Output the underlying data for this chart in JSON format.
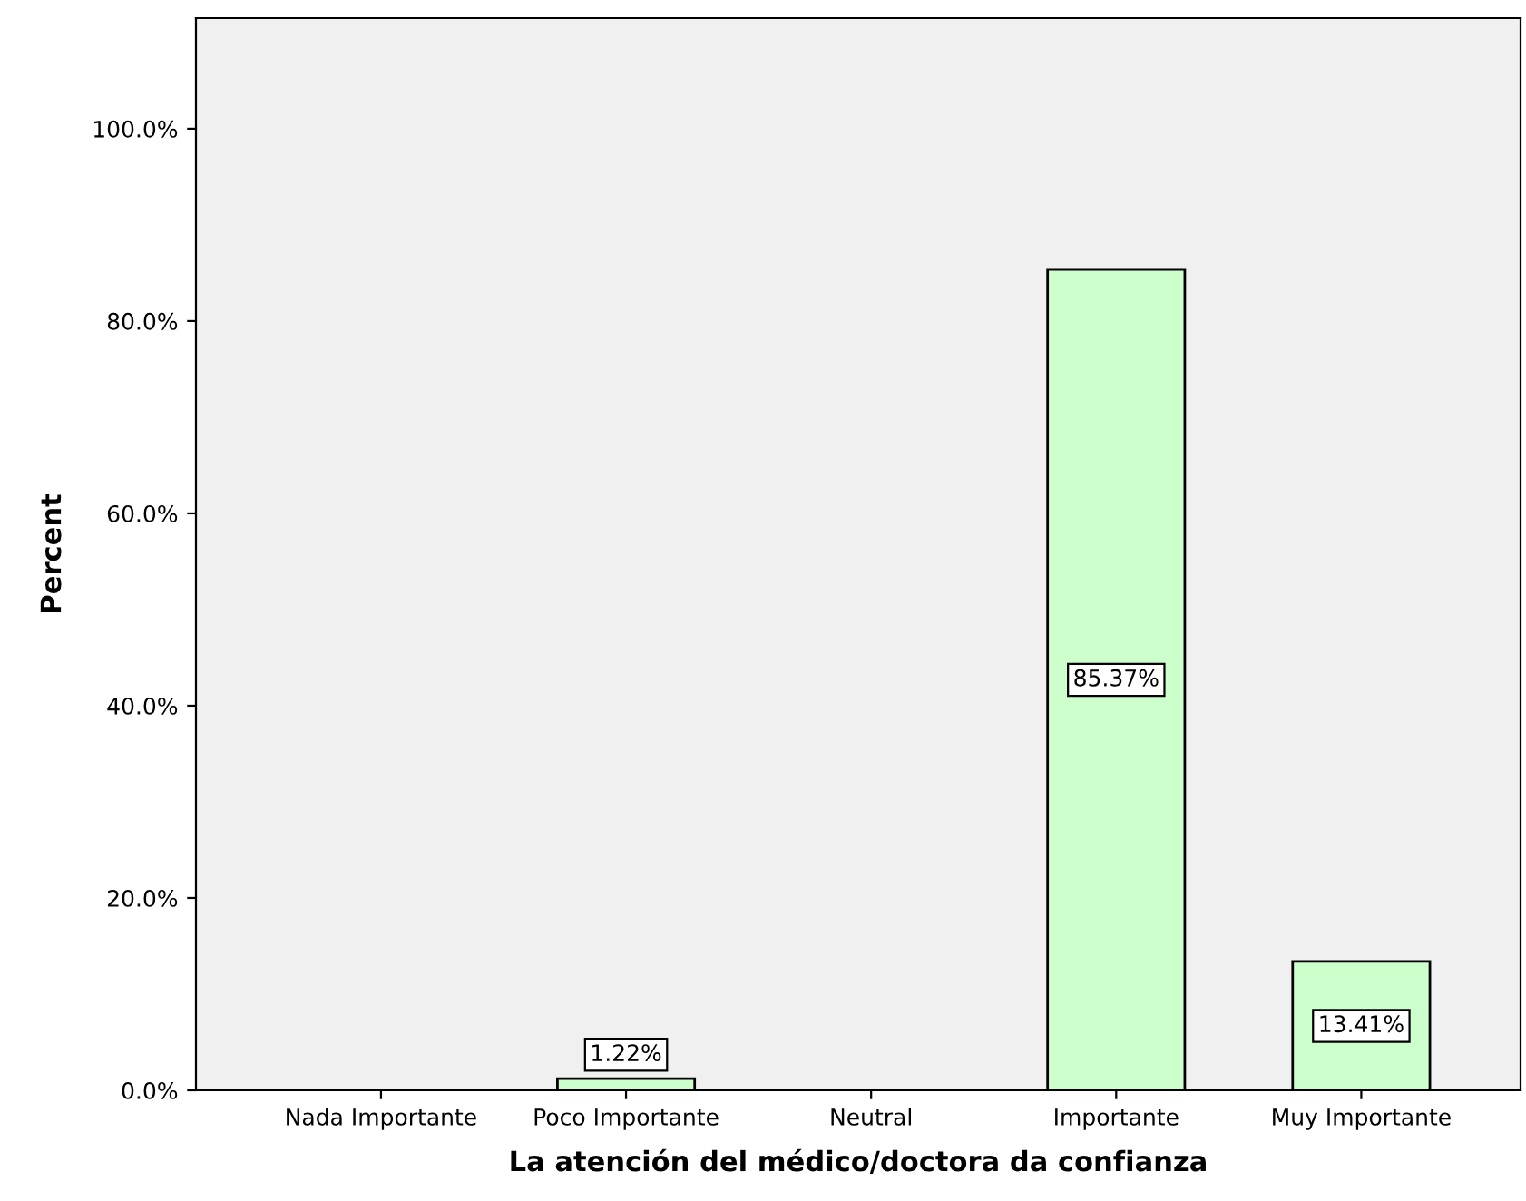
{
  "chart_data": {
    "type": "bar",
    "xlabel": "La atención del médico/doctora da confianza",
    "ylabel": "Percent",
    "categories": [
      "Nada Importante",
      "Poco Importante",
      "Neutral",
      "Importante",
      "Muy Importante"
    ],
    "values": [
      null,
      1.22,
      null,
      85.37,
      13.41
    ],
    "value_labels": [
      null,
      "1.22%",
      null,
      "85.37%",
      "13.41%"
    ],
    "color": "#ccffcc",
    "ylim": [
      0,
      111.5
    ],
    "yticks": [
      {
        "value": 0,
        "label": "0.0%"
      },
      {
        "value": 20,
        "label": "20.0%"
      },
      {
        "value": 40,
        "label": "40.0%"
      },
      {
        "value": 60,
        "label": "60.0%"
      },
      {
        "value": 80,
        "label": "80.0%"
      },
      {
        "value": 100,
        "label": "100.0%"
      }
    ],
    "grid": false
  }
}
